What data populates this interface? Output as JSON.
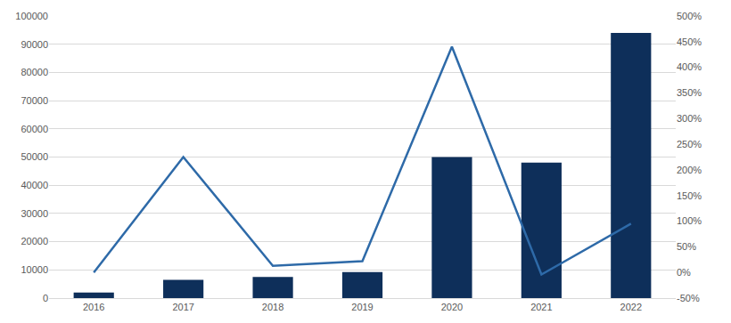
{
  "chart_data": {
    "type": "bar",
    "categories": [
      "2016",
      "2017",
      "2018",
      "2019",
      "2020",
      "2021",
      "2022"
    ],
    "series": [
      {
        "type": "bar",
        "color": "#0e2f5a",
        "values": [
          2000,
          6500,
          7500,
          9200,
          50000,
          48000,
          94000
        ]
      },
      {
        "type": "line",
        "color": "#2e6aa8",
        "axis": "y2",
        "values": [
          0,
          225,
          13,
          22,
          440,
          -4,
          95
        ]
      }
    ],
    "ylim": [
      0,
      100000
    ],
    "yticks": [
      0,
      10000,
      20000,
      30000,
      40000,
      50000,
      60000,
      70000,
      80000,
      90000,
      100000
    ],
    "y2lim": [
      -50,
      500
    ],
    "y2ticks": [
      {
        "value": -50,
        "label": "-50%"
      },
      {
        "value": 0,
        "label": "0%"
      },
      {
        "value": 50,
        "label": "50%"
      },
      {
        "value": 100,
        "label": "100%"
      },
      {
        "value": 150,
        "label": "150%"
      },
      {
        "value": 200,
        "label": "200%"
      },
      {
        "value": 250,
        "label": "250%"
      },
      {
        "value": 300,
        "label": "300%"
      },
      {
        "value": 350,
        "label": "350%"
      },
      {
        "value": 400,
        "label": "400%"
      },
      {
        "value": 450,
        "label": "450%"
      },
      {
        "value": 500,
        "label": "500%"
      }
    ],
    "grid": true
  }
}
